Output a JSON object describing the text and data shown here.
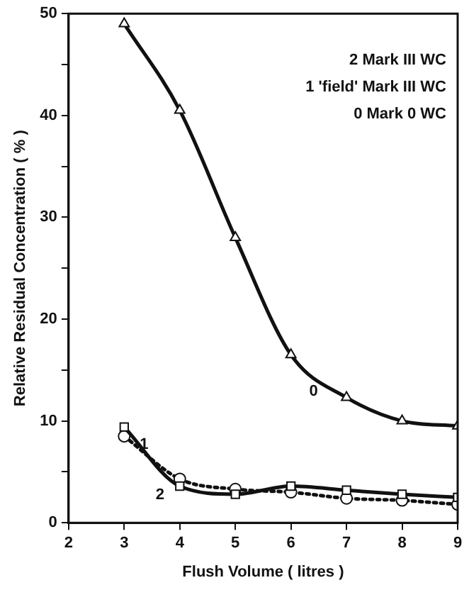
{
  "chart_data": {
    "type": "line",
    "xlabel": "Flush Volume ( litres )",
    "ylabel": "Relative Residual Concentration ( % )",
    "x": [
      3,
      4,
      5,
      6,
      7,
      8,
      9
    ],
    "series": [
      {
        "name": "0",
        "color": "#111111",
        "marker": "triangle",
        "line_style": "solid",
        "values": [
          49,
          40.5,
          28,
          16.5,
          12.3,
          10,
          9.5
        ]
      },
      {
        "name": "1",
        "color": "#111111",
        "marker": "circle",
        "line_style": "dotted",
        "values": [
          8.5,
          4.3,
          3.3,
          3.0,
          2.4,
          2.2,
          1.8
        ]
      },
      {
        "name": "2",
        "color": "#111111",
        "marker": "square",
        "line_style": "solid",
        "values": [
          9.4,
          3.6,
          2.8,
          3.6,
          3.2,
          2.8,
          2.5
        ]
      }
    ],
    "xlim": [
      2,
      9
    ],
    "xticks": [
      2,
      3,
      4,
      5,
      6,
      7,
      8,
      9
    ],
    "ylim": [
      0,
      50
    ],
    "yticks": [
      0,
      {
        "value": 5,
        "label": null
      },
      10,
      {
        "value": 15,
        "label": null
      },
      20,
      {
        "value": 25,
        "label": null
      },
      30,
      {
        "value": 35,
        "label": null
      },
      40,
      {
        "value": 45,
        "label": null
      },
      50
    ],
    "grid": false,
    "legend": false,
    "annotations": [
      "2 Mark III WC",
      "1 'field' Mark III WC",
      "0 Mark 0 WC"
    ]
  }
}
